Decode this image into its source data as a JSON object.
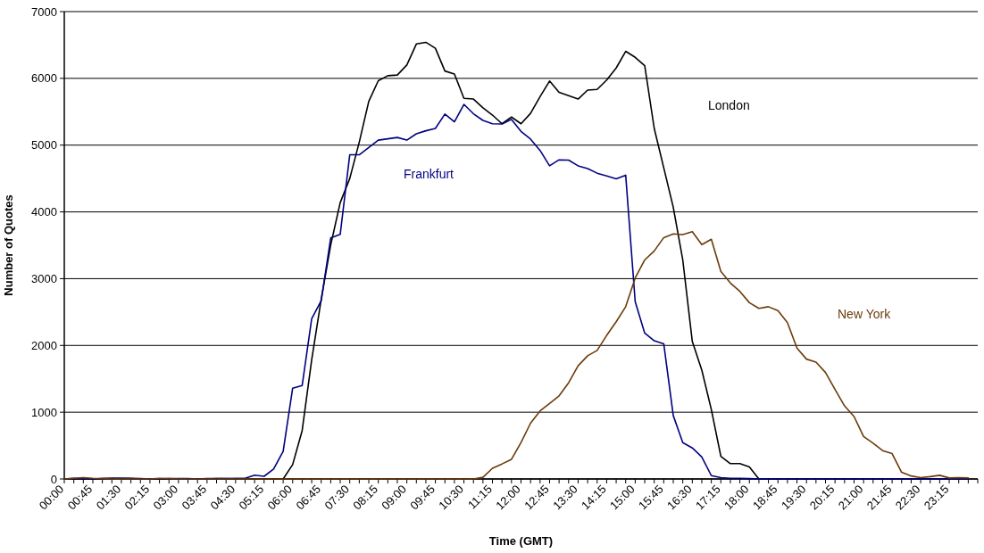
{
  "chart_data": {
    "type": "line",
    "xlabel": "Time (GMT)",
    "ylabel": "Number of Quotes",
    "categories": [
      "00:00",
      null,
      null,
      "00:45",
      null,
      null,
      "01:30",
      null,
      null,
      "02:15",
      null,
      null,
      "03:00",
      null,
      null,
      "03:45",
      null,
      null,
      "04:30",
      null,
      null,
      "05:15",
      null,
      null,
      "06:00",
      null,
      null,
      "06:45",
      null,
      null,
      "07:30",
      null,
      null,
      "08:15",
      null,
      null,
      "09:00",
      null,
      null,
      "09:45",
      null,
      null,
      "10:30",
      null,
      null,
      "11:15",
      null,
      null,
      "12:00",
      null,
      null,
      "12:45",
      null,
      null,
      "13:30",
      null,
      null,
      "14:15",
      null,
      null,
      "15:00",
      null,
      null,
      "15:45",
      null,
      null,
      "16:30",
      null,
      null,
      "17:15",
      null,
      null,
      "18:00",
      null,
      null,
      "18:45",
      null,
      null,
      "19:30",
      null,
      null,
      "20:15",
      null,
      null,
      "21:00",
      null,
      null,
      "21:45",
      null,
      null,
      "22:30",
      null,
      null,
      "23:15",
      null,
      null
    ],
    "series": [
      {
        "name": "London",
        "color": "#000000",
        "values": [
          0,
          0,
          0,
          0,
          5,
          10,
          10,
          10,
          5,
          0,
          0,
          0,
          0,
          0,
          0,
          5,
          5,
          5,
          0,
          0,
          0,
          0,
          0,
          0,
          215,
          725,
          1785,
          2690,
          3505,
          4140,
          4500,
          5045,
          5655,
          5965,
          6040,
          6050,
          6200,
          6515,
          6540,
          6450,
          6110,
          6065,
          5700,
          5690,
          5560,
          5450,
          5320,
          5420,
          5320,
          5475,
          5725,
          5960,
          5790,
          5740,
          5690,
          5825,
          5835,
          5975,
          6155,
          6405,
          6315,
          6190,
          5250,
          4660,
          4070,
          3280,
          2060,
          1630,
          1040,
          340,
          230,
          230,
          180,
          0,
          0,
          0,
          0,
          0,
          0,
          0,
          0,
          0,
          0,
          0,
          0,
          0,
          0,
          0,
          0,
          0,
          0,
          0,
          0,
          0,
          0,
          0
        ]
      },
      {
        "name": "Frankfurt",
        "color": "#000080",
        "values": [
          0,
          10,
          5,
          0,
          5,
          10,
          10,
          5,
          0,
          0,
          0,
          5,
          5,
          5,
          0,
          0,
          5,
          5,
          10,
          10,
          57,
          40,
          150,
          414,
          1360,
          1400,
          2400,
          2670,
          3610,
          3665,
          4855,
          4855,
          4965,
          5075,
          5095,
          5115,
          5075,
          5170,
          5215,
          5250,
          5465,
          5350,
          5610,
          5470,
          5370,
          5320,
          5317,
          5385,
          5205,
          5090,
          4920,
          4690,
          4780,
          4775,
          4690,
          4650,
          4580,
          4540,
          4495,
          4550,
          2655,
          2185,
          2070,
          2025,
          950,
          545,
          465,
          330,
          50,
          20,
          10,
          10,
          5,
          0,
          0,
          0,
          0,
          0,
          0,
          0,
          0,
          0,
          0,
          0,
          0,
          0,
          0,
          0,
          0,
          0,
          0,
          0,
          0,
          0,
          0,
          0
        ]
      },
      {
        "name": "New York",
        "color": "#6b3a0a",
        "values": [
          0,
          10,
          20,
          10,
          5,
          0,
          0,
          0,
          0,
          0,
          10,
          5,
          0,
          0,
          0,
          0,
          0,
          0,
          0,
          0,
          0,
          0,
          0,
          0,
          0,
          0,
          0,
          0,
          0,
          0,
          0,
          0,
          0,
          0,
          0,
          0,
          0,
          0,
          0,
          0,
          0,
          0,
          0,
          0,
          25,
          160,
          225,
          295,
          545,
          835,
          1020,
          1130,
          1245,
          1440,
          1695,
          1845,
          1925,
          2150,
          2355,
          2580,
          3010,
          3280,
          3415,
          3615,
          3670,
          3660,
          3705,
          3510,
          3590,
          3110,
          2935,
          2810,
          2640,
          2555,
          2580,
          2520,
          2340,
          1960,
          1795,
          1750,
          1595,
          1340,
          1095,
          935,
          635,
          535,
          425,
          380,
          100,
          45,
          20,
          35,
          55,
          15,
          20,
          15
        ]
      }
    ],
    "ylim": [
      0,
      7000
    ],
    "yticks": [
      0,
      1000,
      2000,
      3000,
      4000,
      5000,
      6000,
      7000
    ],
    "grid": "y",
    "legend": false,
    "marker": "none",
    "line_style": "solid"
  }
}
